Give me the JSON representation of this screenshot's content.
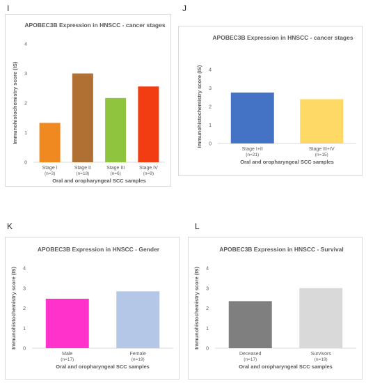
{
  "panels": [
    {
      "letter": "I"
    },
    {
      "letter": "J"
    },
    {
      "letter": "K"
    },
    {
      "letter": "L"
    }
  ],
  "chart_data": [
    {
      "type": "bar",
      "title": "APOBEC3B Expression in HNSCC - cancer stages",
      "ylabel": "Immunohistochemistry score (IS)",
      "xlabel": "Oral and oropharyngeal SCC samples",
      "ylim": [
        0,
        4
      ],
      "yticks": [
        "0",
        "1",
        "2",
        "3",
        "4"
      ],
      "grid": false,
      "categories": [
        {
          "name": "Stage I",
          "n": "(n=3)"
        },
        {
          "name": "Stage II",
          "n": "(n=18)"
        },
        {
          "name": "Stage III",
          "n": "(n=6)"
        },
        {
          "name": "Stage IV",
          "n": "(n=9)"
        }
      ],
      "values": [
        1.33,
        3.0,
        2.17,
        2.56
      ],
      "colors": [
        "#f0891f",
        "#b07033",
        "#8fc43f",
        "#f23c12"
      ]
    },
    {
      "type": "bar",
      "title": "APOBEC3B Expression in HNSCC - cancer stages",
      "ylabel": "Immunohistochemistry score (IS)",
      "xlabel": "Oral and oropharyngeal SCC samples",
      "ylim": [
        0,
        4
      ],
      "yticks": [
        "0",
        "1",
        "2",
        "3",
        "4"
      ],
      "grid": false,
      "categories": [
        {
          "name": "Stage I+II",
          "n": "(n=21)"
        },
        {
          "name": "Stage III+IV",
          "n": "(n=15)"
        }
      ],
      "values": [
        2.76,
        2.4
      ],
      "colors": [
        "#4472c4",
        "#ffd966"
      ]
    },
    {
      "type": "bar",
      "title": "APOBEC3B Expression in HNSCC - Gender",
      "ylabel": "Immunohistochemistry score (IS)",
      "xlabel": "Oral and oropharyngeal SCC samples",
      "ylim": [
        0,
        4
      ],
      "yticks": [
        "0",
        "1",
        "2",
        "3",
        "4"
      ],
      "grid": false,
      "categories": [
        {
          "name": "Male",
          "n": "(n=17)"
        },
        {
          "name": "Female",
          "n": "(n=19)"
        }
      ],
      "values": [
        2.47,
        2.84
      ],
      "colors": [
        "#ff33cc",
        "#b4c7e7"
      ]
    },
    {
      "type": "bar",
      "title": "APOBEC3B Expression in HNSCC - Survival",
      "ylabel": "Immunohistochemistry score (IS)",
      "xlabel": "Oral and oropharyngeal SCC samples",
      "ylim": [
        0,
        4
      ],
      "yticks": [
        "0",
        "1",
        "2",
        "3",
        "4"
      ],
      "grid": false,
      "categories": [
        {
          "name": "Deceased",
          "n": "(n=17)"
        },
        {
          "name": "Survivors",
          "n": "(n=19)"
        }
      ],
      "values": [
        2.35,
        3.0
      ],
      "colors": [
        "#7f7f7f",
        "#d9d9d9"
      ]
    }
  ]
}
